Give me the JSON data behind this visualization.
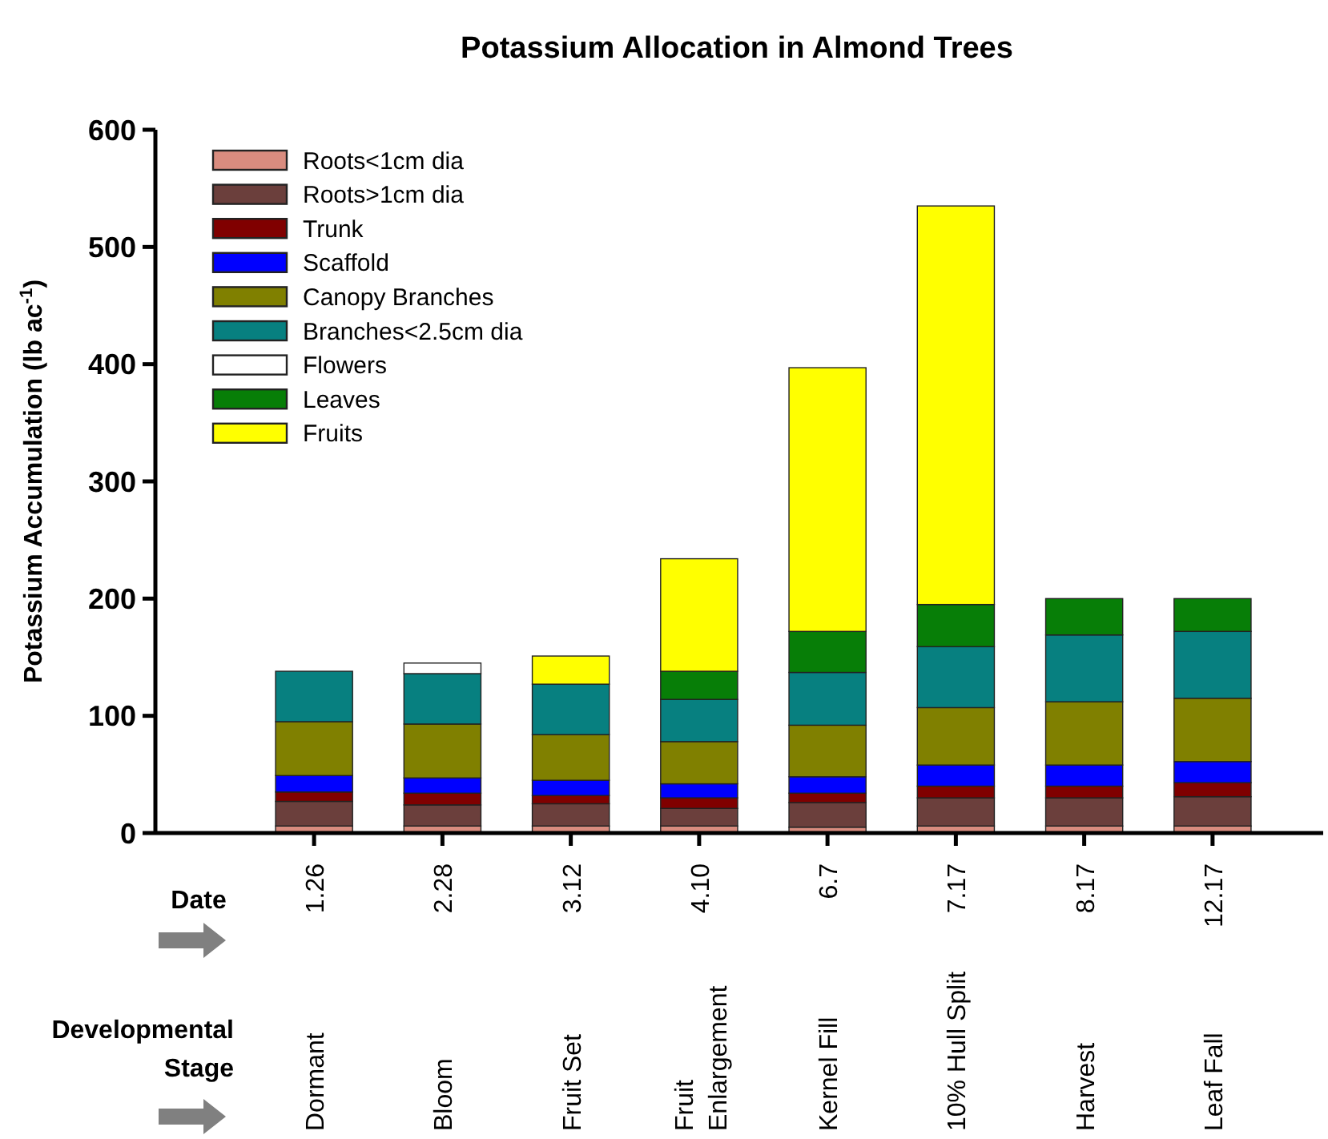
{
  "chart_data": {
    "type": "bar",
    "title": "Potassium Allocation in Almond Trees",
    "ylabel": "Potassium Accumulation (lb ac$^{-1}$)",
    "categories": [
      "1.26",
      "2.28",
      "3.12",
      "4.10",
      "6.7",
      "7.17",
      "8.17",
      "12.17"
    ],
    "stacked": true,
    "legend": "top left",
    "grid": false,
    "ylim": [
      0,
      600
    ],
    "yticks": [
      0,
      100,
      200,
      300,
      400,
      500,
      600
    ],
    "series": [
      {
        "name": "Roots<1cm dia",
        "color": "#d98c7f",
        "values": [
          6,
          6,
          6,
          6,
          5,
          6,
          6,
          6
        ]
      },
      {
        "name": "Roots>1cm dia",
        "color": "#6b3f3c",
        "values": [
          21,
          18,
          19,
          15,
          21,
          24,
          24,
          25
        ]
      },
      {
        "name": "Trunk",
        "color": "#800000",
        "values": [
          8,
          10,
          7,
          9,
          8,
          10,
          10,
          12
        ]
      },
      {
        "name": "Scaffold",
        "color": "#0000ff",
        "values": [
          14,
          13,
          13,
          12,
          14,
          18,
          18,
          18
        ]
      },
      {
        "name": "Canopy Branches",
        "color": "#808000",
        "values": [
          46,
          46,
          39,
          36,
          44,
          49,
          54,
          54
        ]
      },
      {
        "name": "Branches<2.5cm dia",
        "color": "#078080",
        "values": [
          43,
          43,
          43,
          36,
          45,
          52,
          57,
          57
        ]
      },
      {
        "name": "Flowers",
        "color": "#ffffff",
        "values": [
          null,
          9,
          null,
          null,
          null,
          null,
          null,
          null
        ]
      },
      {
        "name": "Leaves",
        "color": "#077e07",
        "values": [
          null,
          null,
          null,
          24,
          35,
          36,
          31,
          28
        ]
      },
      {
        "name": "Fruits",
        "color": "#ffff00",
        "values": [
          null,
          null,
          24,
          96,
          225,
          340,
          null,
          null
        ]
      }
    ],
    "annotations": [
      "Date",
      "Developmental Stage",
      "Dormant",
      "Bloom",
      "Fruit Set",
      "Fruit Enlargement",
      "Kernel Fill",
      "10% Hull Split",
      "Harvest",
      "Leaf Fall"
    ]
  }
}
